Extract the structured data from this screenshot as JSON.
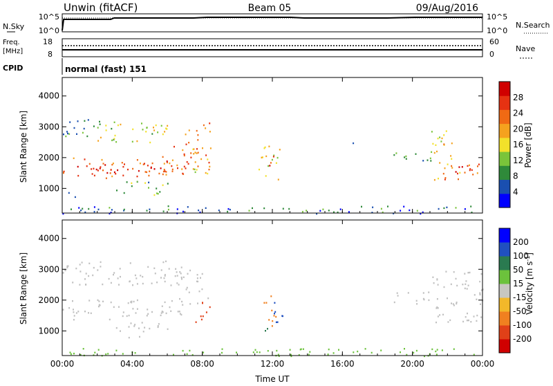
{
  "header": {
    "station": "Unwin (fitACF)",
    "beam": "Beam 05",
    "date": "09/Aug/2016"
  },
  "strips": {
    "nsky_label": "N.Sky",
    "nsky_ticks": [
      "10^5",
      "10^0"
    ],
    "nsearch_label": "N.Search",
    "freq_label_1": "Freq.",
    "freq_label_2": "[MHz]",
    "freq_ticks": [
      "18",
      "8"
    ],
    "nave_label": "Nave",
    "nave_ticks": [
      "60",
      "0"
    ],
    "cpid_label": "CPID",
    "cpid_value": "normal (fast) 151"
  },
  "colors": {
    "power_scale": [
      "#0000ff",
      "#1a4fb0",
      "#2f8a3a",
      "#7ac43a",
      "#f2e12a",
      "#f5a21e",
      "#f06a14",
      "#e63212",
      "#d00000"
    ],
    "velocity_scale": [
      "#0000ff",
      "#2050c0",
      "#2a7a50",
      "#6cc23c",
      "#c7c7c0",
      "#f2b82a",
      "#f08020",
      "#e04018",
      "#d00000"
    ],
    "ground_scatter": "#c0c0c0"
  },
  "chart_data": [
    {
      "type": "heatmap",
      "name": "power",
      "xlabel": "",
      "ylabel": "Slant Range [km]",
      "x_ticks": [
        "00:00",
        "04:00",
        "08:00",
        "12:00",
        "16:00",
        "20:00",
        "00:00"
      ],
      "y_ticks": [
        "1000",
        "2000",
        "3000",
        "4000"
      ],
      "xlim_hours": [
        0,
        24
      ],
      "ylim_km": [
        200,
        4600
      ],
      "colorbar_label": "Power [dB]",
      "colorbar_ticks": [
        "4",
        "8",
        "12",
        "16",
        "20",
        "24",
        "28"
      ],
      "colorbar_range": [
        0,
        30
      ],
      "regions": [
        {
          "t": [
            0.0,
            7.2
          ],
          "r": [
            1350,
            2050
          ],
          "value": 22
        },
        {
          "t": [
            0.5,
            7.0
          ],
          "r": [
            1500,
            1800
          ],
          "value": 26
        },
        {
          "t": [
            2.0,
            6.0
          ],
          "r": [
            2500,
            3200
          ],
          "value": 14
        },
        {
          "t": [
            0.0,
            3.0
          ],
          "r": [
            2700,
            3300
          ],
          "value": 8
        },
        {
          "t": [
            7.0,
            8.5
          ],
          "r": [
            1500,
            3200
          ],
          "value": 20
        },
        {
          "t": [
            6.3,
            8.0
          ],
          "r": [
            1900,
            2400
          ],
          "value": 24
        },
        {
          "t": [
            7.5,
            8.4
          ],
          "r": [
            1500,
            1900
          ],
          "value": 14
        },
        {
          "t": [
            3.0,
            6.0
          ],
          "r": [
            800,
            1300
          ],
          "value": 10
        },
        {
          "t": [
            0.0,
            1.0
          ],
          "r": [
            700,
            900
          ],
          "value": 8
        },
        {
          "t": [
            11.2,
            12.4
          ],
          "r": [
            1300,
            2400
          ],
          "value": 14
        },
        {
          "t": [
            11.5,
            12.1
          ],
          "r": [
            1700,
            2100
          ],
          "value": 22
        },
        {
          "t": [
            16.2,
            16.8
          ],
          "r": [
            2400,
            2600
          ],
          "value": 6
        },
        {
          "t": [
            18.7,
            21.2
          ],
          "r": [
            1900,
            2300
          ],
          "value": 8
        },
        {
          "t": [
            21.2,
            24.0
          ],
          "r": [
            1300,
            1900
          ],
          "value": 20
        },
        {
          "t": [
            21.0,
            22.3
          ],
          "r": [
            1900,
            3000
          ],
          "value": 18
        },
        {
          "t": [
            21.5,
            23.5
          ],
          "r": [
            1500,
            1800
          ],
          "value": 25
        },
        {
          "t": [
            0.0,
            24.0
          ],
          "r": [
            200,
            450
          ],
          "value": 6
        }
      ]
    },
    {
      "type": "heatmap",
      "name": "velocity",
      "xlabel": "Time UT",
      "ylabel": "Slant Range [km]",
      "x_ticks": [
        "00:00",
        "04:00",
        "08:00",
        "12:00",
        "16:00",
        "20:00",
        "00:00"
      ],
      "y_ticks": [
        "1000",
        "2000",
        "3000",
        "4000"
      ],
      "xlim_hours": [
        0,
        24
      ],
      "ylim_km": [
        200,
        4600
      ],
      "colorbar_label": "Velocity [m s^-1]",
      "colorbar_ticks": [
        "200",
        "100",
        "50",
        "15",
        "-15",
        "-50",
        "-100",
        "-200"
      ],
      "regions": [
        {
          "t": [
            0.0,
            7.2
          ],
          "r": [
            1350,
            2050
          ],
          "value": 0
        },
        {
          "t": [
            0.0,
            7.0
          ],
          "r": [
            2500,
            3300
          ],
          "value": 0
        },
        {
          "t": [
            6.3,
            8.3
          ],
          "r": [
            1900,
            3000
          ],
          "value": 0
        },
        {
          "t": [
            3.0,
            6.0
          ],
          "r": [
            800,
            1300
          ],
          "value": 0
        },
        {
          "t": [
            7.6,
            8.6
          ],
          "r": [
            1300,
            2000
          ],
          "value": -150
        },
        {
          "t": [
            11.5,
            12.2
          ],
          "r": [
            1100,
            2200
          ],
          "value": -60
        },
        {
          "t": [
            12.0,
            12.6
          ],
          "r": [
            1200,
            2200
          ],
          "value": 150
        },
        {
          "t": [
            11.5,
            12.0
          ],
          "r": [
            1000,
            1300
          ],
          "value": 80
        },
        {
          "t": [
            18.8,
            21.2
          ],
          "r": [
            1900,
            2300
          ],
          "value": 0
        },
        {
          "t": [
            21.0,
            24.0
          ],
          "r": [
            1300,
            3000
          ],
          "value": 0
        },
        {
          "t": [
            0.0,
            24.0
          ],
          "r": [
            200,
            450
          ],
          "value": 30
        }
      ]
    }
  ]
}
